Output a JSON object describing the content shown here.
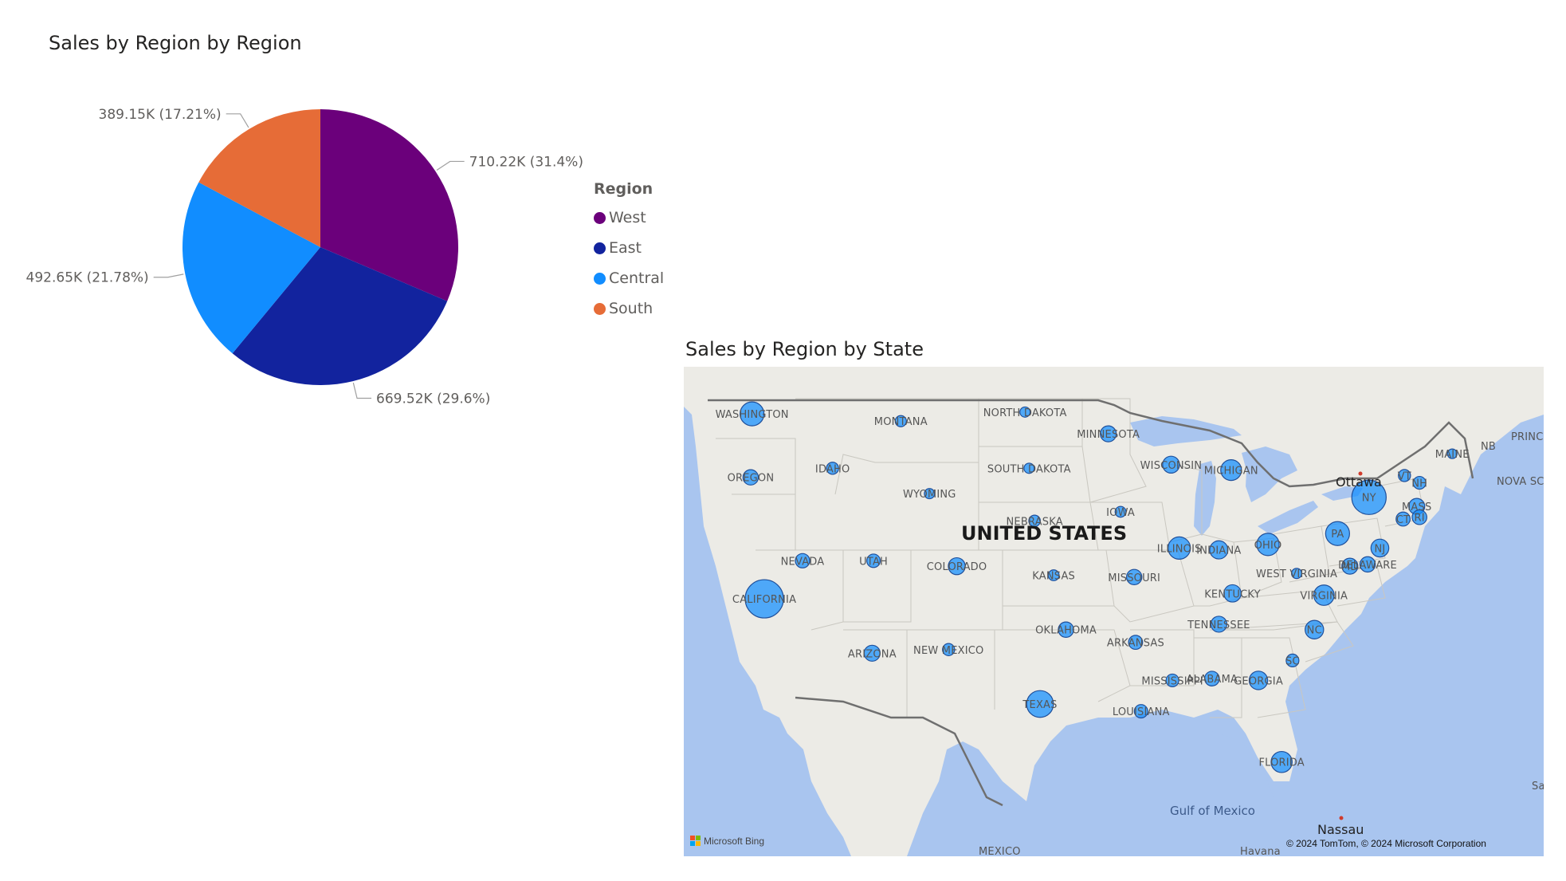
{
  "chart_data": [
    {
      "type": "pie",
      "title": "Sales by Region by Region",
      "legend_title": "Region",
      "legend_position": "right",
      "slices": [
        {
          "name": "West",
          "value": 710220,
          "label": "710.22K (31.4%)",
          "color": "#6B007B"
        },
        {
          "name": "East",
          "value": 669520,
          "label": "669.52K (29.6%)",
          "color": "#12239E"
        },
        {
          "name": "Central",
          "value": 492650,
          "label": "492.65K (21.78%)",
          "color": "#118DFF"
        },
        {
          "name": "South",
          "value": 389150,
          "label": "389.15K (17.21%)",
          "color": "#E66C37"
        }
      ]
    },
    {
      "type": "map",
      "title": "Sales by Region by State",
      "bubble_color": "#118DFF",
      "country_label": "UNITED STATES",
      "states": [
        {
          "name": "WASHINGTON",
          "lon": -120.5,
          "lat": 47.4,
          "size": 0.55
        },
        {
          "name": "OREGON",
          "lon": -120.6,
          "lat": 43.9,
          "size": 0.28
        },
        {
          "name": "CALIFORNIA",
          "lon": -119.6,
          "lat": 37.2,
          "size": 1.0
        },
        {
          "name": "NEVADA",
          "lon": -116.8,
          "lat": 39.3,
          "size": 0.25
        },
        {
          "name": "IDAHO",
          "lon": -114.6,
          "lat": 44.4,
          "size": 0.18
        },
        {
          "name": "MONTANA",
          "lon": -109.6,
          "lat": 47.0,
          "size": 0.15
        },
        {
          "name": "UTAH",
          "lon": -111.6,
          "lat": 39.3,
          "size": 0.22
        },
        {
          "name": "ARIZONA",
          "lon": -111.7,
          "lat": 34.2,
          "size": 0.3
        },
        {
          "name": "WYOMING",
          "lon": -107.5,
          "lat": 43.0,
          "size": 0.12
        },
        {
          "name": "COLORADO",
          "lon": -105.5,
          "lat": 39.0,
          "size": 0.33
        },
        {
          "name": "NEW MEXICO",
          "lon": -106.1,
          "lat": 34.4,
          "size": 0.18
        },
        {
          "name": "NORTH DAKOTA",
          "lon": -100.5,
          "lat": 47.5,
          "size": 0.12
        },
        {
          "name": "SOUTH DAKOTA",
          "lon": -100.2,
          "lat": 44.4,
          "size": 0.12
        },
        {
          "name": "NEBRASKA",
          "lon": -99.8,
          "lat": 41.5,
          "size": 0.16
        },
        {
          "name": "KANSAS",
          "lon": -98.4,
          "lat": 38.5,
          "size": 0.14
        },
        {
          "name": "OKLAHOMA",
          "lon": -97.5,
          "lat": 35.5,
          "size": 0.28
        },
        {
          "name": "TEXAS",
          "lon": -99.4,
          "lat": 31.4,
          "size": 0.64
        },
        {
          "name": "MINNESOTA",
          "lon": -94.4,
          "lat": 46.3,
          "size": 0.3
        },
        {
          "name": "IOWA",
          "lon": -93.5,
          "lat": 42.0,
          "size": 0.14
        },
        {
          "name": "MISSOURI",
          "lon": -92.5,
          "lat": 38.4,
          "size": 0.28
        },
        {
          "name": "ARKANSAS",
          "lon": -92.4,
          "lat": 34.8,
          "size": 0.24
        },
        {
          "name": "LOUISIANA",
          "lon": -92.0,
          "lat": 31.0,
          "size": 0.22
        },
        {
          "name": "WISCONSIN",
          "lon": -89.8,
          "lat": 44.6,
          "size": 0.33
        },
        {
          "name": "ILLINOIS",
          "lon": -89.2,
          "lat": 40.0,
          "size": 0.5
        },
        {
          "name": "MICHIGAN",
          "lon": -85.4,
          "lat": 44.3,
          "size": 0.45
        },
        {
          "name": "INDIANA",
          "lon": -86.3,
          "lat": 39.9,
          "size": 0.37
        },
        {
          "name": "KENTUCKY",
          "lon": -85.3,
          "lat": 37.5,
          "size": 0.34
        },
        {
          "name": "TENNESSEE",
          "lon": -86.3,
          "lat": 35.8,
          "size": 0.3
        },
        {
          "name": "MISSISSIPPI",
          "lon": -89.7,
          "lat": 32.7,
          "size": 0.2
        },
        {
          "name": "ALABAMA",
          "lon": -86.8,
          "lat": 32.8,
          "size": 0.26
        },
        {
          "name": "GEORGIA",
          "lon": -83.4,
          "lat": 32.7,
          "size": 0.38
        },
        {
          "name": "FLORIDA",
          "lon": -81.7,
          "lat": 28.2,
          "size": 0.46
        },
        {
          "name": "OHIO",
          "lon": -82.7,
          "lat": 40.2,
          "size": 0.5
        },
        {
          "name": "WEST VIRGINIA",
          "lon": -80.6,
          "lat": 38.6,
          "size": 0.12
        },
        {
          "name": "VIRGINIA",
          "lon": -78.6,
          "lat": 37.4,
          "size": 0.44
        },
        {
          "name": "NC",
          "lon": -79.3,
          "lat": 35.5,
          "size": 0.38
        },
        {
          "name": "SC",
          "lon": -80.9,
          "lat": 33.8,
          "size": 0.2
        },
        {
          "name": "PA",
          "lon": -77.6,
          "lat": 40.8,
          "size": 0.55
        },
        {
          "name": "NY",
          "lon": -75.3,
          "lat": 42.8,
          "size": 0.88
        },
        {
          "name": "NJ",
          "lon": -74.5,
          "lat": 40.0,
          "size": 0.36
        },
        {
          "name": "DELAWARE",
          "lon": -75.4,
          "lat": 39.1,
          "size": 0.28
        },
        {
          "name": "MD",
          "lon": -76.7,
          "lat": 39.0,
          "size": 0.3
        },
        {
          "name": "VT",
          "lon": -72.7,
          "lat": 44.0,
          "size": 0.18
        },
        {
          "name": "NH",
          "lon": -71.6,
          "lat": 43.6,
          "size": 0.2
        },
        {
          "name": "MAINE",
          "lon": -69.2,
          "lat": 45.2,
          "size": 0.1
        },
        {
          "name": "MASS",
          "lon": -71.8,
          "lat": 42.3,
          "size": 0.3
        },
        {
          "name": "RI",
          "lon": -71.6,
          "lat": 41.7,
          "size": 0.26
        },
        {
          "name": "CT",
          "lon": -72.8,
          "lat": 41.6,
          "size": 0.24
        }
      ]
    }
  ],
  "map": {
    "places": {
      "ottawa": "Ottawa",
      "nassau": "Nassau",
      "gulf": "Gulf of Mexico",
      "mexico": "MEXICO",
      "havana": "Havana",
      "nb": "NB",
      "pei": "PRINCE EDWARD ISLAND",
      "nova_scotia": "NOVA SCO",
      "sa": "Sa"
    },
    "attribution": "© 2024 TomTom, © 2024 Microsoft Corporation",
    "provider": "Microsoft Bing"
  },
  "colors": {
    "land": "#ecebe6",
    "water": "#a9c5ef",
    "border": "#6f6f6f",
    "state_border": "#c9c7c0"
  }
}
